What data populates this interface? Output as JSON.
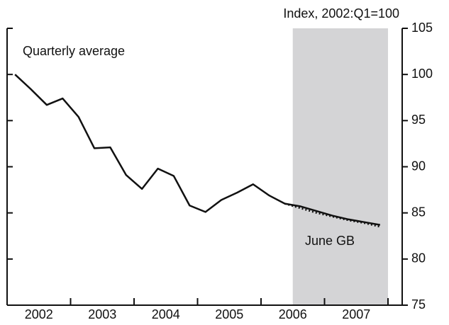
{
  "chart_data": {
    "type": "line",
    "y_axis_label": "Index, 2002:Q1=100",
    "annotations": [
      "Quarterly average",
      "June GB"
    ],
    "x": [
      2002.125,
      2002.375,
      2002.625,
      2002.875,
      2003.125,
      2003.375,
      2003.625,
      2003.875,
      2004.125,
      2004.375,
      2004.625,
      2004.875,
      2005.125,
      2005.375,
      2005.625,
      2005.875,
      2006.125,
      2006.375,
      2006.625,
      2006.875,
      2007.125,
      2007.375,
      2007.625,
      2007.875
    ],
    "series": [
      {
        "color": "#111111",
        "style": "solid",
        "values": [
          100,
          98.4,
          96.7,
          97.4,
          95.4,
          92.0,
          92.1,
          89.1,
          87.6,
          89.8,
          89.0,
          85.8,
          85.1,
          86.4,
          87.2,
          88.1,
          86.9,
          86.0,
          85.7,
          85.2,
          84.7,
          84.3,
          84.0,
          83.7
        ]
      },
      {
        "color": "#111111",
        "style": "dotted",
        "values": [
          null,
          null,
          null,
          null,
          null,
          null,
          null,
          null,
          null,
          null,
          null,
          null,
          null,
          null,
          null,
          null,
          null,
          86.0,
          85.5,
          85.0,
          84.6,
          84.2,
          83.9,
          83.5
        ]
      }
    ],
    "xlim": [
      2002,
      2008
    ],
    "xticks": [
      {
        "value": 2002.5,
        "label": "2002"
      },
      {
        "value": 2003.5,
        "label": "2003"
      },
      {
        "value": 2004.5,
        "label": "2004"
      },
      {
        "value": 2005.5,
        "label": "2005"
      },
      {
        "value": 2006.5,
        "label": "2006"
      },
      {
        "value": 2007.5,
        "label": "2007"
      }
    ],
    "year_ticks": [
      2002,
      2003,
      2004,
      2005,
      2006,
      2007,
      2008
    ],
    "ylim": [
      75,
      105
    ],
    "yticks": [
      75,
      80,
      85,
      90,
      95,
      100,
      105
    ],
    "shade": [
      2006.5,
      2008
    ],
    "shade_color": "#d4d4d6"
  }
}
